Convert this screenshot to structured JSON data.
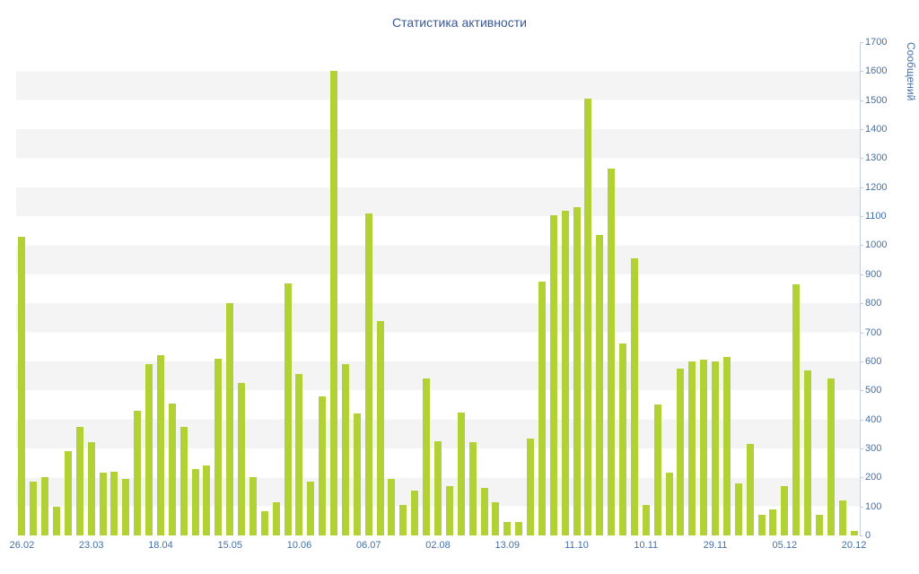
{
  "page": {
    "title": "Статистика активности"
  },
  "chart_data": {
    "type": "bar",
    "title": "Статистика активности",
    "xlabel": "",
    "ylabel": "Сообщений",
    "ylim": [
      0,
      1700
    ],
    "y_step": 100,
    "y_tick_labels": [
      0,
      100,
      200,
      300,
      400,
      500,
      600,
      700,
      800,
      900,
      1000,
      1100,
      1200,
      1300,
      1400,
      1500,
      1600,
      1700
    ],
    "grid": "striped-horizontal-bands",
    "legend": "none",
    "x_tick_labels": [
      {
        "index": 0,
        "label": "26.02"
      },
      {
        "index": 6,
        "label": "23.03"
      },
      {
        "index": 12,
        "label": "18.04"
      },
      {
        "index": 18,
        "label": "15.05"
      },
      {
        "index": 24,
        "label": "10.06"
      },
      {
        "index": 30,
        "label": "06.07"
      },
      {
        "index": 36,
        "label": "02.08"
      },
      {
        "index": 42,
        "label": "13.09"
      },
      {
        "index": 48,
        "label": "11.10"
      },
      {
        "index": 54,
        "label": "10.11"
      },
      {
        "index": 60,
        "label": "29.11"
      },
      {
        "index": 66,
        "label": "05.12"
      },
      {
        "index": 72,
        "label": "20.12"
      }
    ],
    "values": [
      1030,
      185,
      200,
      100,
      290,
      375,
      320,
      215,
      220,
      195,
      430,
      590,
      620,
      455,
      375,
      230,
      240,
      610,
      800,
      525,
      200,
      85,
      115,
      870,
      555,
      185,
      480,
      1600,
      590,
      420,
      1110,
      740,
      195,
      105,
      155,
      540,
      325,
      170,
      425,
      320,
      165,
      115,
      45,
      45,
      335,
      875,
      1105,
      1120,
      1130,
      1505,
      1035,
      1265,
      660,
      955,
      105,
      450,
      215,
      575,
      600,
      605,
      600,
      615,
      180,
      315,
      70,
      90,
      170,
      865,
      570,
      70,
      540,
      120,
      15
    ],
    "colors": {
      "bar": "#b1d135",
      "title": "#3a5795",
      "axis_label": "#4470a8",
      "stripe": "#f4f4f4",
      "axis_line": "#c6cedd",
      "background": "#ffffff"
    }
  }
}
